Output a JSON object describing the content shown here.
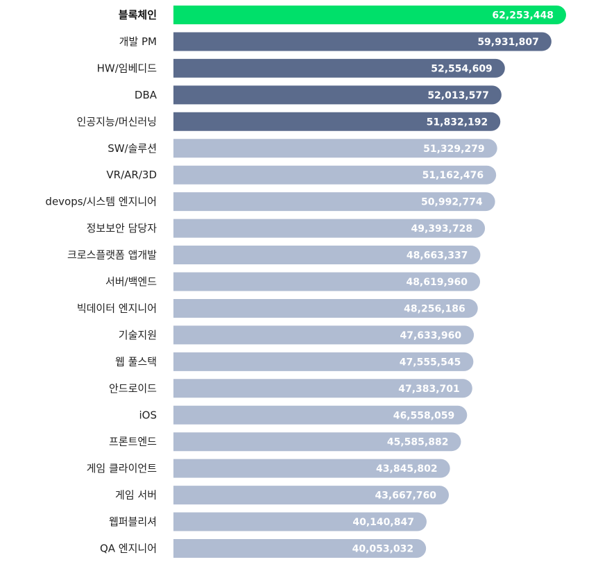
{
  "chart_data": {
    "type": "bar",
    "orientation": "horizontal",
    "title": "",
    "xlabel": "",
    "ylabel": "",
    "grid": false,
    "xlim": [
      0,
      62253448
    ],
    "categories": [
      "블록체인",
      "개발 PM",
      "HW/임베디드",
      "DBA",
      "인공지능/머신러닝",
      "SW/솔루션",
      "VR/AR/3D",
      "devops/시스템 엔지니어",
      "정보보안 담당자",
      "크로스플랫폼 앱개발",
      "서버/백엔드",
      "빅데이터 엔지니어",
      "기술지원",
      "웹 풀스택",
      "안드로이드",
      "iOS",
      "프론트엔드",
      "게임 클라이언트",
      "게임 서버",
      "웹퍼블리셔",
      "QA 엔지니어"
    ],
    "values": [
      62253448,
      59931807,
      52554609,
      52013577,
      51832192,
      51329279,
      51162476,
      50992774,
      49393728,
      48663337,
      48619960,
      48256186,
      47633960,
      47555545,
      47383701,
      46558059,
      45585882,
      43845802,
      43667760,
      40140847,
      40053032
    ],
    "value_labels": [
      "62,253,448",
      "59,931,807",
      "52,554,609",
      "52,013,577",
      "51,832,192",
      "51,329,279",
      "51,162,476",
      "50,992,774",
      "49,393,728",
      "48,663,337",
      "48,619,960",
      "48,256,186",
      "47,633,960",
      "47,555,545",
      "47,383,701",
      "46,558,059",
      "45,585,882",
      "43,845,802",
      "43,667,760",
      "40,140,847",
      "40,053,032"
    ],
    "colors": {
      "highlight": "#00e06a",
      "dark": "#5b6b8c",
      "light": "#b0bcd2"
    },
    "highlight_count": 1,
    "dark_count": 4
  }
}
